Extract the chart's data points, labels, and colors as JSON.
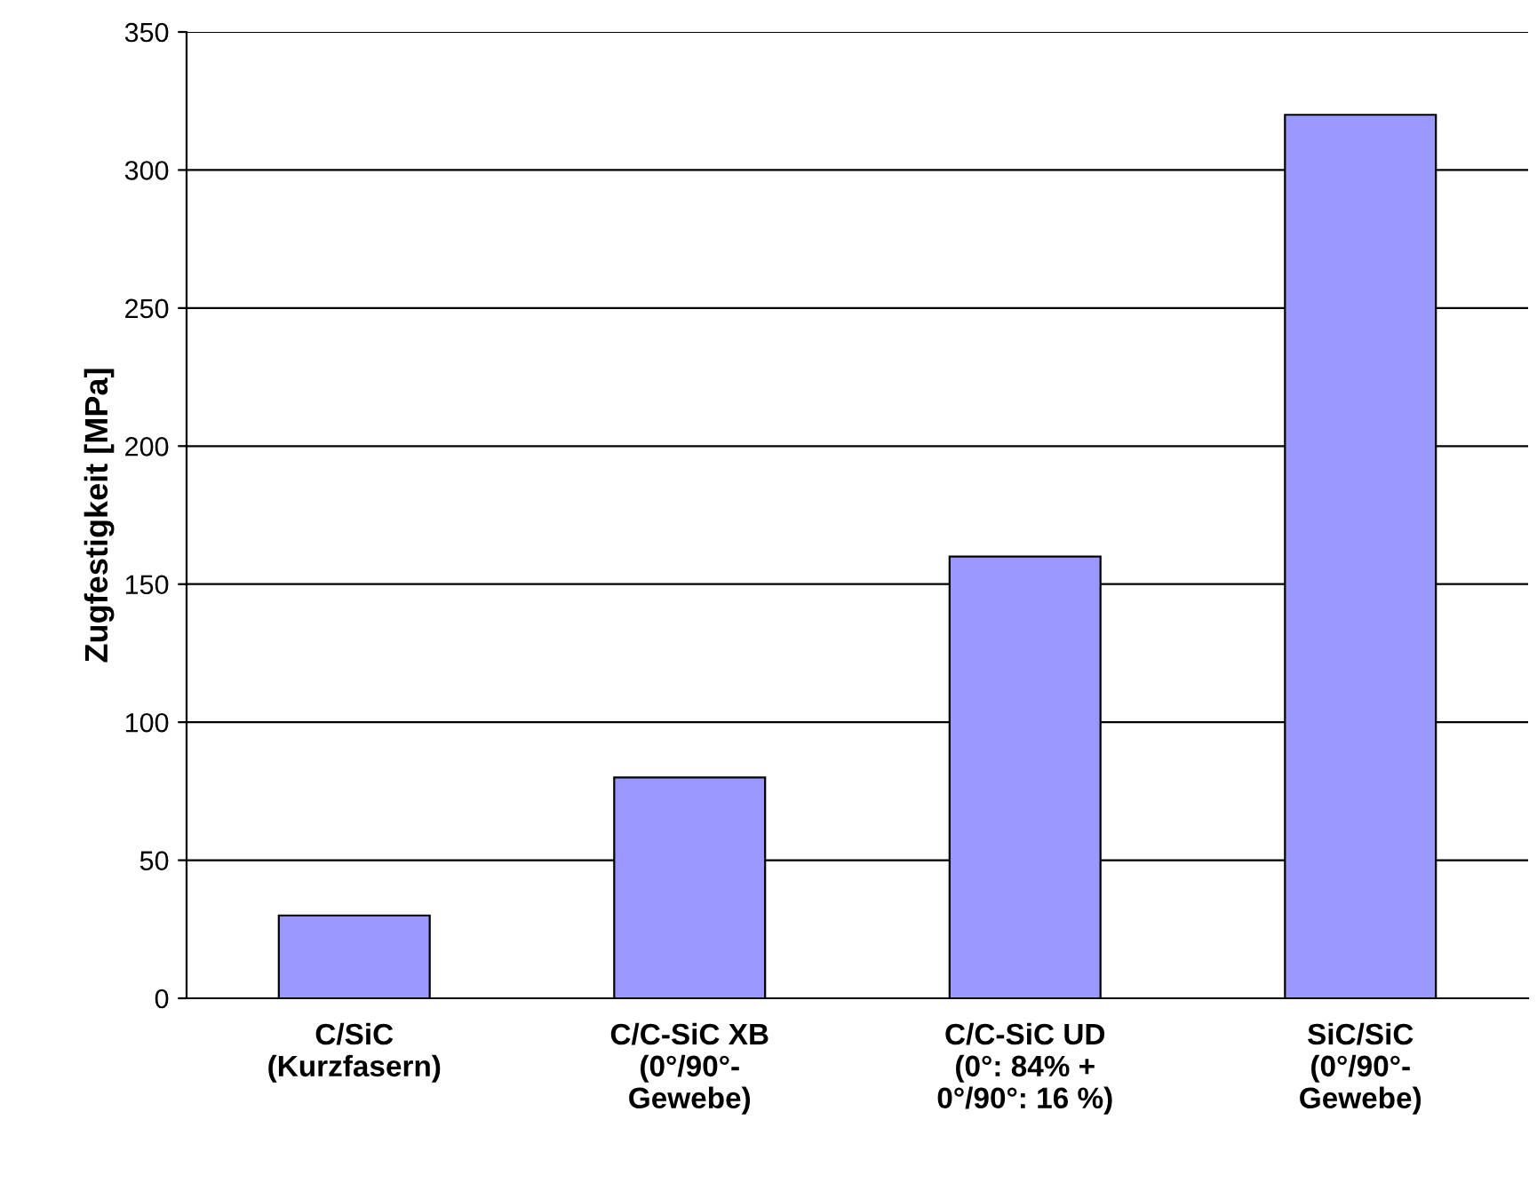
{
  "chart_data": {
    "type": "bar",
    "ylabel": "Zugfestigkeit [MPa]",
    "categories": [
      "C/SiC\n(Kurzfasern)",
      "C/C-SiC XB\n(0°/90°-\nGewebe)",
      "C/C-SiC UD\n(0°: 84% +\n0°/90°: 16 %)",
      "SiC/SiC\n(0°/90°-\nGewebe)"
    ],
    "values": [
      30,
      80,
      160,
      320
    ],
    "color": "#9999ff",
    "ylim": [
      0,
      350
    ],
    "yticks": [
      0,
      50,
      100,
      150,
      200,
      250,
      300,
      350
    ],
    "grid": "y"
  }
}
